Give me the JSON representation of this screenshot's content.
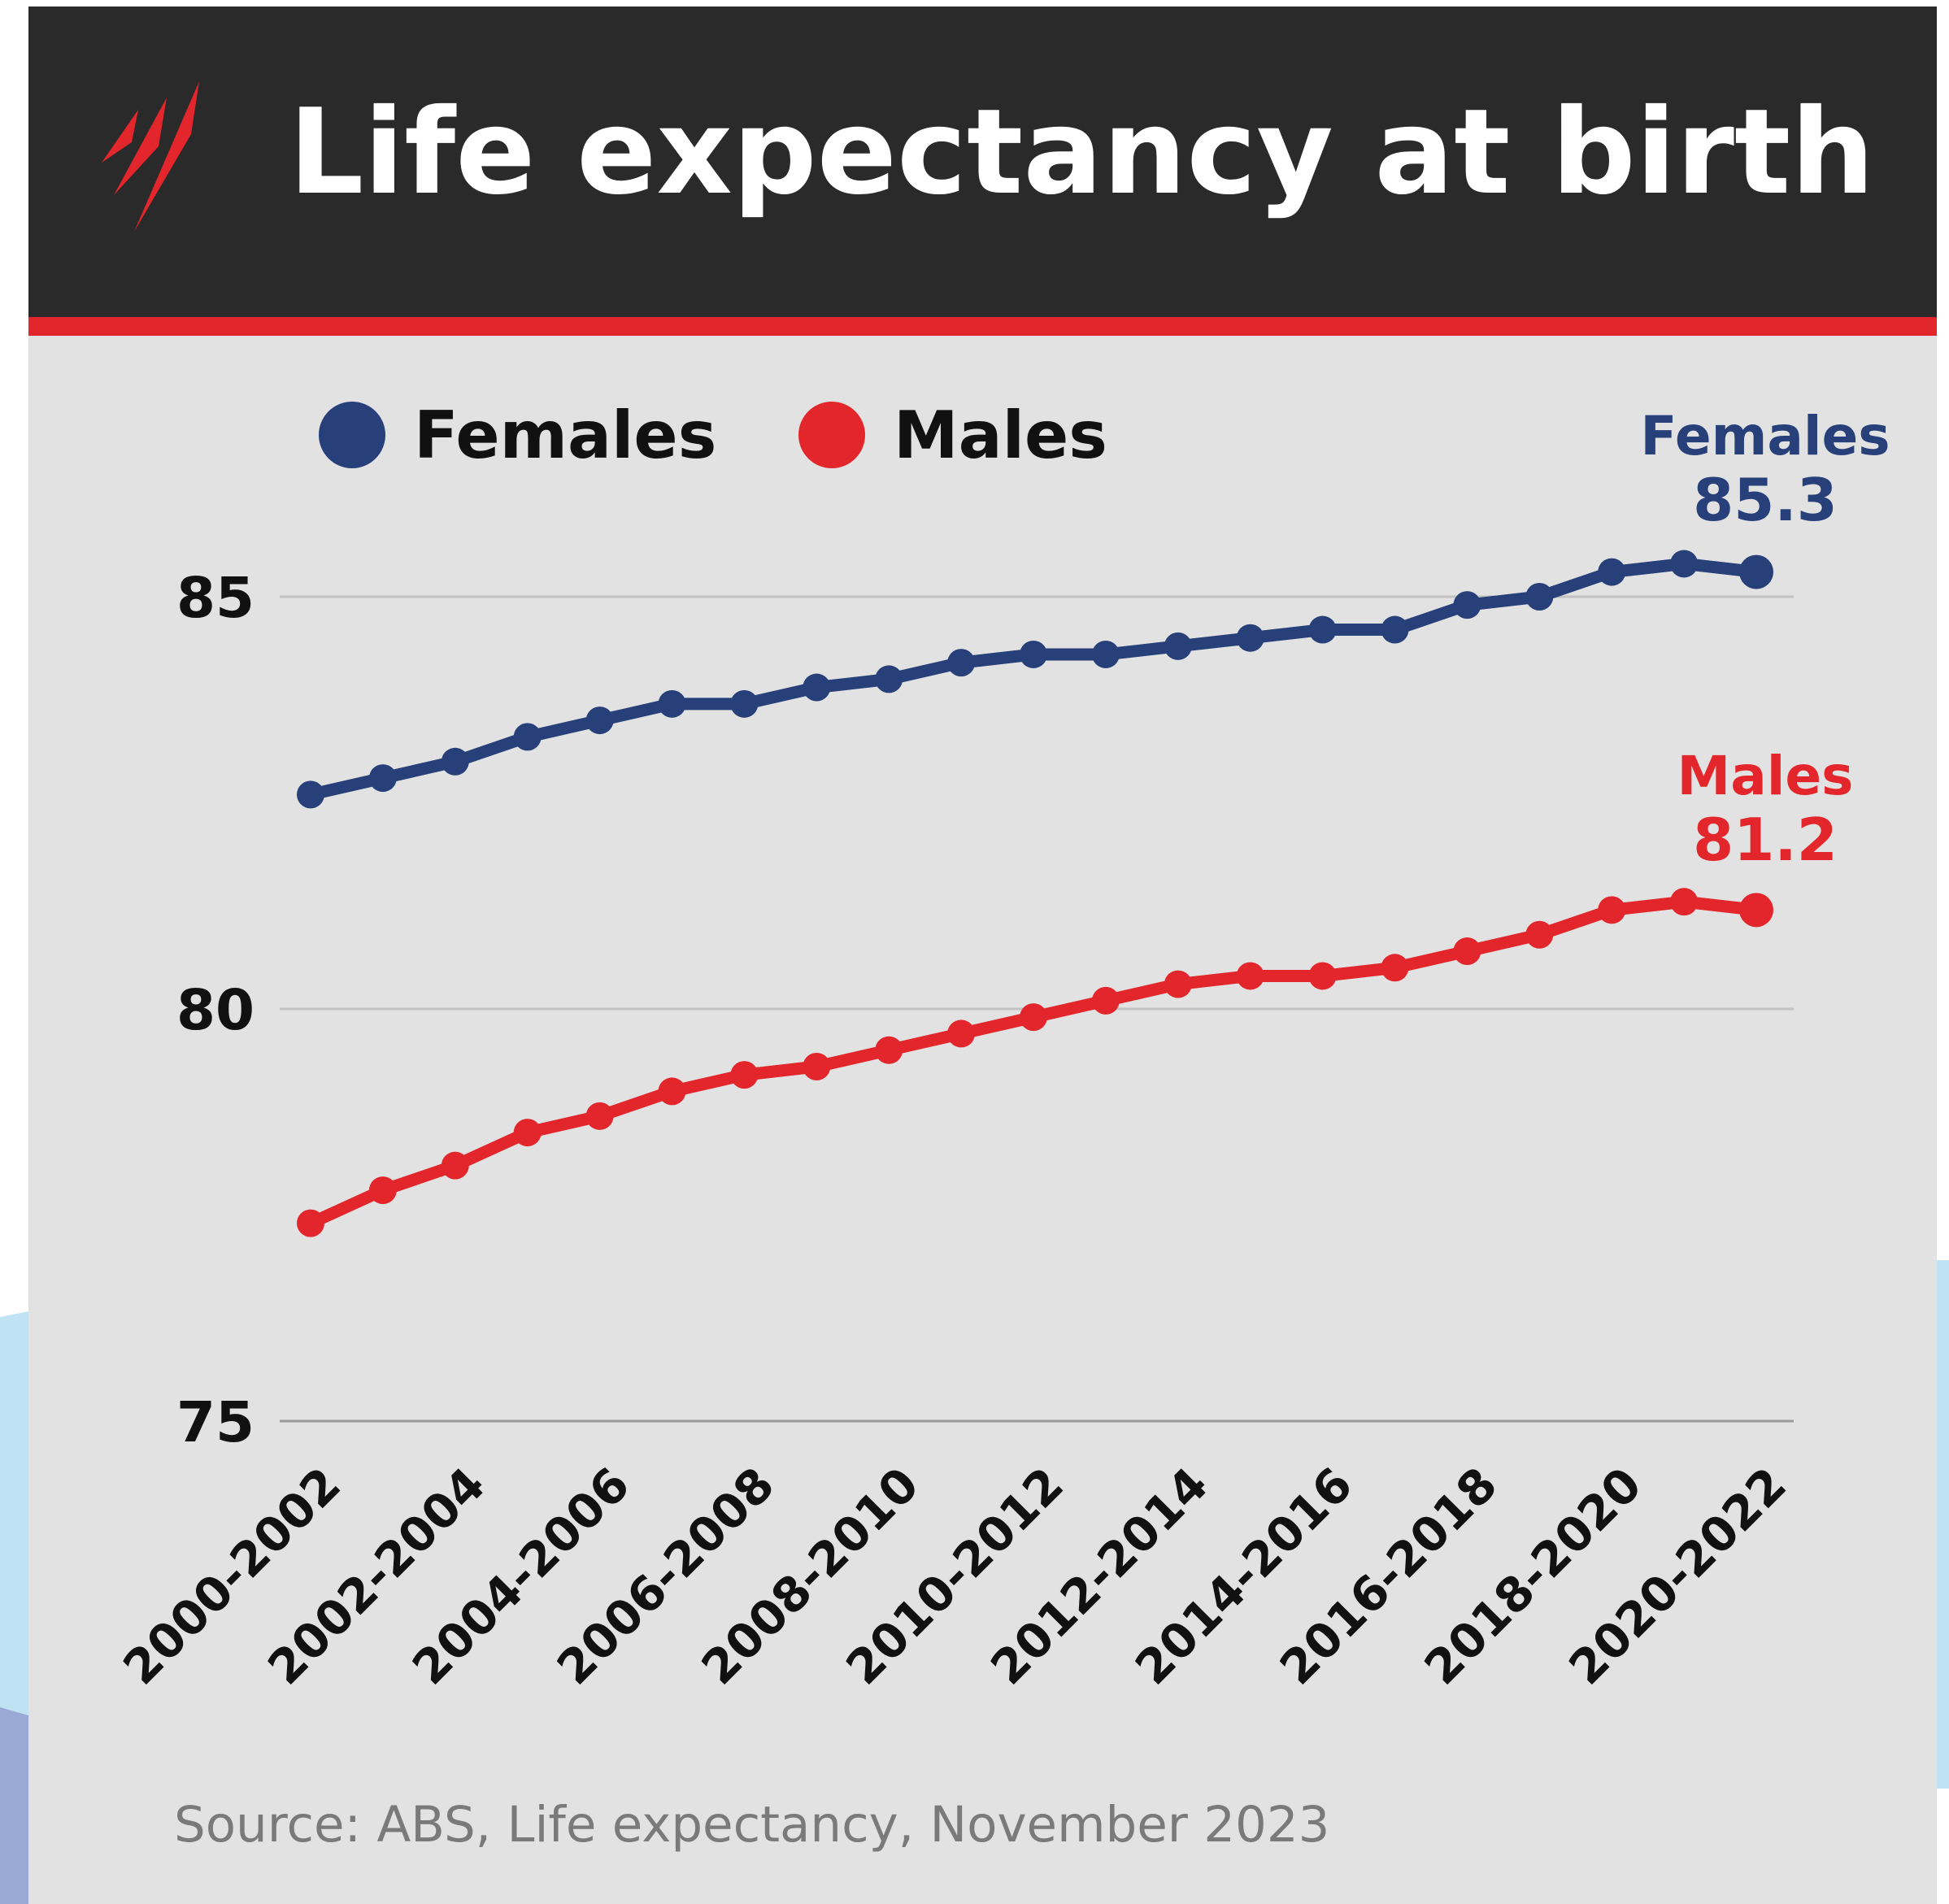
{
  "chart_data": {
    "type": "line",
    "title": "Life expectancy at birth",
    "source": "Source: ABS, Life expectancy, November 2023",
    "categories": [
      "2000-2002",
      null,
      "2002-2004",
      null,
      "2004-2006",
      null,
      "2006-2008",
      null,
      "2008-2010",
      null,
      "2010-2012",
      null,
      "2012-2014",
      null,
      "2014-2016",
      null,
      "2016-2018",
      null,
      "2018-2020",
      null,
      "2020-2022"
    ],
    "series": [
      {
        "name": "Females",
        "color": "#27407a",
        "values": [
          82.6,
          82.8,
          83.0,
          83.3,
          83.5,
          83.7,
          83.7,
          83.9,
          84.0,
          84.2,
          84.3,
          84.3,
          84.4,
          84.5,
          84.6,
          84.6,
          84.9,
          85.0,
          85.3,
          85.4,
          85.3
        ]
      },
      {
        "name": "Males",
        "color": "#e3262b",
        "values": [
          77.4,
          77.8,
          78.1,
          78.5,
          78.7,
          79.0,
          79.2,
          79.3,
          79.5,
          79.7,
          79.9,
          80.1,
          80.3,
          80.4,
          80.4,
          80.5,
          80.7,
          80.9,
          81.2,
          81.3,
          81.2
        ]
      }
    ],
    "ylim": [
      75,
      86.5
    ],
    "yticks": [
      75,
      80,
      85
    ],
    "grid": true,
    "legend": "top-left"
  }
}
